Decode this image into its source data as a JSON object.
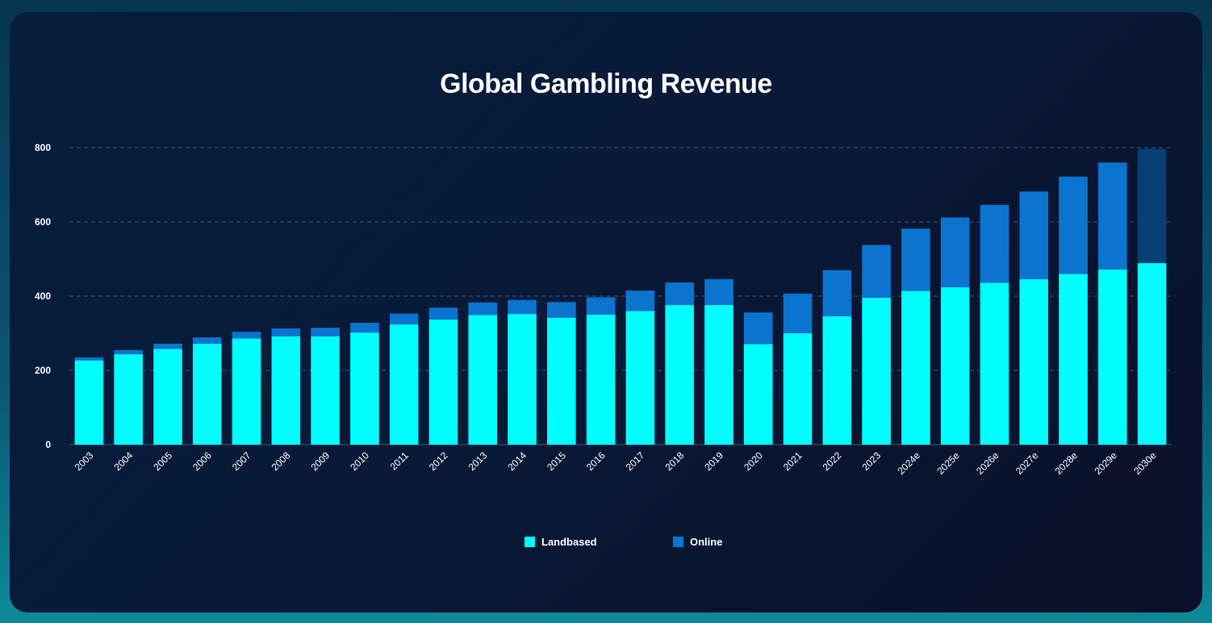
{
  "chart_data": {
    "type": "bar",
    "stacked": true,
    "title": "Global Gambling Revenue",
    "xlabel": "",
    "ylabel": "",
    "ylim": [
      0,
      800
    ],
    "yticks": [
      0,
      200,
      400,
      600,
      800
    ],
    "grid": true,
    "legend_position": "bottom",
    "categories": [
      "2003",
      "2004",
      "2005",
      "2006",
      "2007",
      "2008",
      "2009",
      "2010",
      "2011",
      "2012",
      "2013",
      "2014",
      "2015",
      "2016",
      "2017",
      "2018",
      "2019",
      "2020",
      "2021",
      "2022",
      "2023",
      "2024e",
      "2025e",
      "2026e",
      "2027e",
      "2028e",
      "2029e",
      "2030e"
    ],
    "series": [
      {
        "name": "Landbased",
        "color": "#00ffff",
        "values": [
          227,
          244,
          258,
          272,
          286,
          292,
          292,
          302,
          324,
          337,
          349,
          352,
          342,
          350,
          360,
          376,
          376,
          271,
          300,
          346,
          396,
          414,
          424,
          436,
          446,
          460,
          472,
          489
        ]
      },
      {
        "name": "Online",
        "color": "#0a74cf",
        "values": [
          8,
          11,
          14,
          17,
          18,
          21,
          23,
          26,
          29,
          32,
          34,
          38,
          42,
          47,
          55,
          61,
          70,
          85,
          107,
          124,
          142,
          168,
          188,
          210,
          236,
          262,
          288,
          308
        ]
      }
    ],
    "highlight": {
      "category": "2030e",
      "series": "Online",
      "color": "#053f74"
    }
  }
}
